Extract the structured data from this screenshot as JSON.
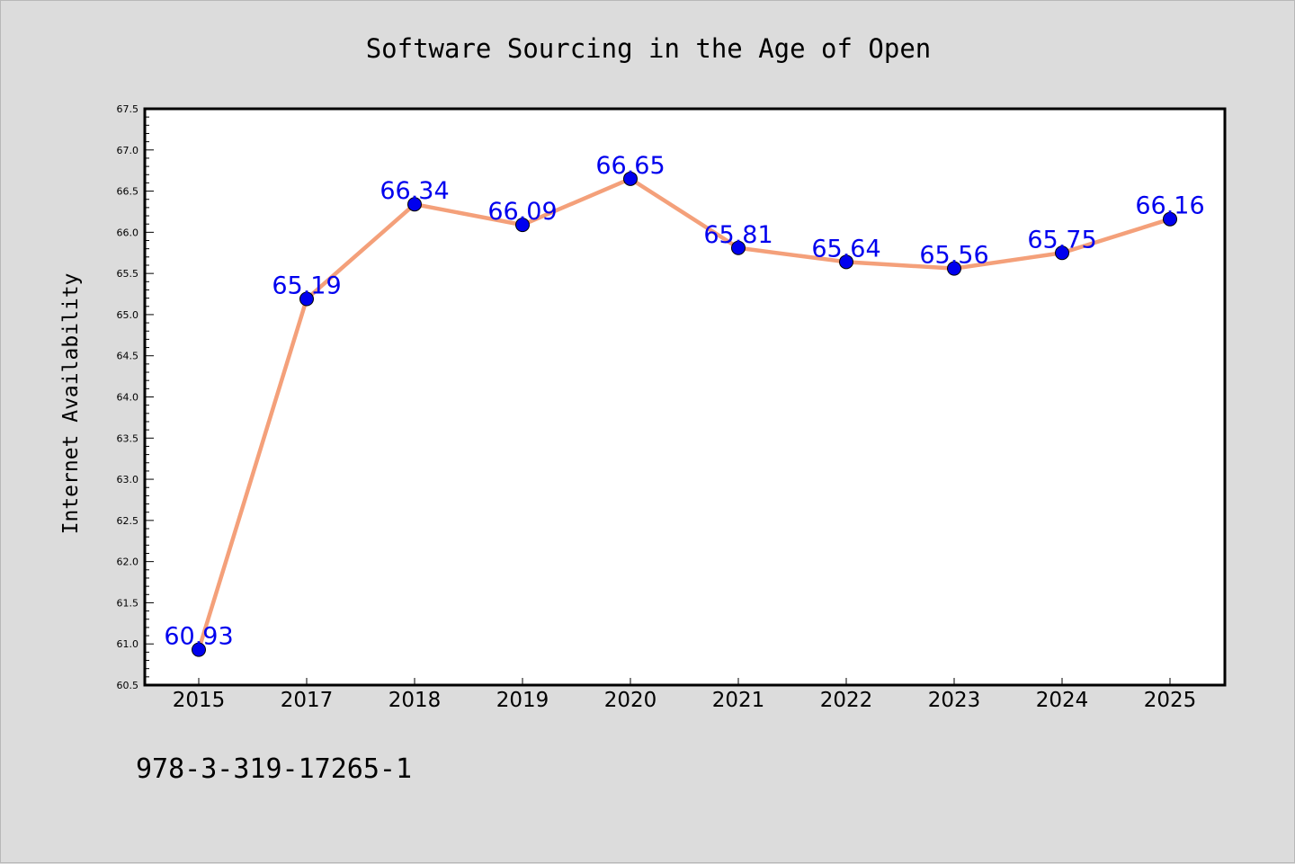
{
  "chart_data": {
    "type": "line",
    "title": "Software Sourcing in the Age of Open",
    "xlabel": "",
    "ylabel": "Internet Availability",
    "categories": [
      "2015",
      "2017",
      "2018",
      "2019",
      "2020",
      "2021",
      "2022",
      "2023",
      "2024",
      "2025"
    ],
    "series": [
      {
        "values": [
          60.93,
          65.19,
          66.34,
          66.09,
          66.65,
          65.81,
          65.64,
          65.56,
          65.75,
          66.16
        ],
        "line_color": "#f4a07a",
        "marker_color": "#0000ee",
        "label_color": "#0000ee"
      }
    ],
    "ylim": [
      60.5,
      67.5
    ],
    "yticks": [
      "60.5",
      "61.0",
      "61.5",
      "62.0",
      "62.5",
      "63.0",
      "63.5",
      "64.0",
      "64.5",
      "65.0",
      "65.5",
      "66.0",
      "66.5",
      "67.0",
      "67.5"
    ],
    "grid": false,
    "data_labels": true,
    "plot_background": "#ffffff",
    "figure_background": "#dcdcdc"
  },
  "footer": {
    "isbn": "978-3-319-17265-1"
  }
}
